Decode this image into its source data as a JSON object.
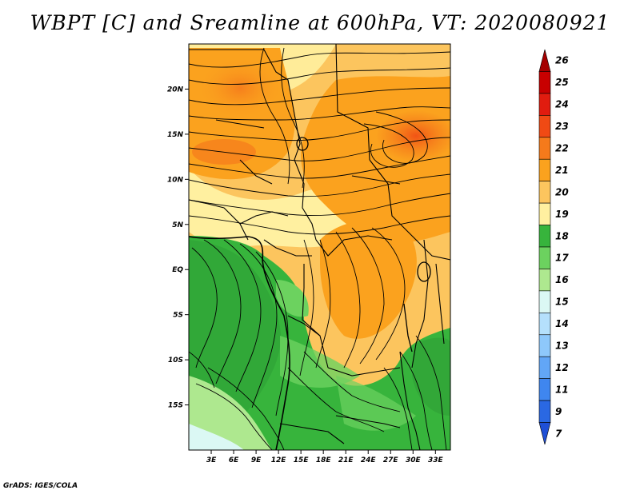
{
  "title": "WBPT [C] and Sreamline at 600hPa, VT: 2020080921",
  "credit": "GrADS: IGES/COLA",
  "map": {
    "lon_range": [
      0,
      35
    ],
    "lat_range": [
      -20,
      25
    ],
    "lat_ticks": [
      {
        "value": 20,
        "label": "20N"
      },
      {
        "value": 15,
        "label": "15N"
      },
      {
        "value": 10,
        "label": "10N"
      },
      {
        "value": 5,
        "label": "5N"
      },
      {
        "value": 0,
        "label": "EQ"
      },
      {
        "value": -5,
        "label": "5S"
      },
      {
        "value": -10,
        "label": "10S"
      },
      {
        "value": -15,
        "label": "15S"
      }
    ],
    "lon_ticks": [
      {
        "value": 3,
        "label": "3E"
      },
      {
        "value": 6,
        "label": "6E"
      },
      {
        "value": 9,
        "label": "9E"
      },
      {
        "value": 12,
        "label": "12E"
      },
      {
        "value": 15,
        "label": "15E"
      },
      {
        "value": 18,
        "label": "18E"
      },
      {
        "value": 21,
        "label": "21E"
      },
      {
        "value": 24,
        "label": "24E"
      },
      {
        "value": 27,
        "label": "27E"
      },
      {
        "value": 30,
        "label": "30E"
      },
      {
        "value": 33,
        "label": "33E"
      }
    ]
  },
  "colorbar": {
    "levels": [
      {
        "label": "26",
        "color": "#a50000"
      },
      {
        "label": "25",
        "color": "#c80000"
      },
      {
        "label": "24",
        "color": "#e11c0f"
      },
      {
        "label": "23",
        "color": "#f04a14"
      },
      {
        "label": "22",
        "color": "#f57a1b"
      },
      {
        "label": "21",
        "color": "#fba21e"
      },
      {
        "label": "20",
        "color": "#fcc55e"
      },
      {
        "label": "19",
        "color": "#fff0a0"
      },
      {
        "label": "18",
        "color": "#37b43c"
      },
      {
        "label": "17",
        "color": "#6cd25f"
      },
      {
        "label": "16",
        "color": "#aee88f"
      },
      {
        "label": "15",
        "color": "#dbf8f4"
      },
      {
        "label": "14",
        "color": "#b5e0fc"
      },
      {
        "label": "13",
        "color": "#8ec8fb"
      },
      {
        "label": "12",
        "color": "#62a6f6"
      },
      {
        "label": "11",
        "color": "#3f86ef"
      },
      {
        "label": "9",
        "color": "#2a68e3"
      },
      {
        "label": "7",
        "color": "#1f4fd6"
      }
    ]
  }
}
